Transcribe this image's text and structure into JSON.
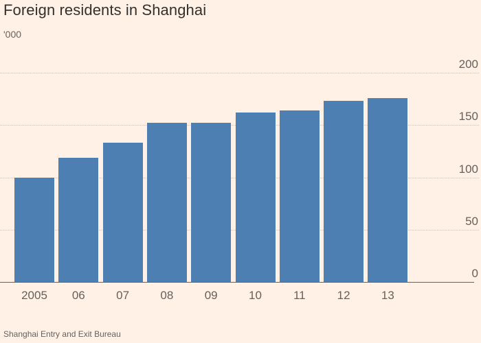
{
  "header": {
    "title": "Foreign residents in Shanghai",
    "units": "'000"
  },
  "footer": {
    "source": "Shanghai Entry and Exit Bureau"
  },
  "colors": {
    "background": "#FFF1E5",
    "bar": "#4D7FB3",
    "title_text": "#33302E",
    "muted_text": "#66605C",
    "gridline": "#CDC0B2",
    "axis_line": "#66605C"
  },
  "chart_data": {
    "type": "bar",
    "title": "Foreign residents in Shanghai",
    "subtitle": "'000",
    "xlabel": "",
    "ylabel": "'000",
    "categories": [
      "2005",
      "06",
      "07",
      "08",
      "09",
      "10",
      "11",
      "12",
      "13"
    ],
    "values": [
      100,
      119,
      133,
      152,
      152,
      162,
      164,
      173,
      176
    ],
    "ylim": [
      0,
      200
    ],
    "yticks": [
      0,
      50,
      100,
      150,
      200
    ],
    "ytick_side": "right",
    "grid": "horizontal-dotted",
    "legend": "none",
    "source": "Shanghai Entry and Exit Bureau"
  }
}
